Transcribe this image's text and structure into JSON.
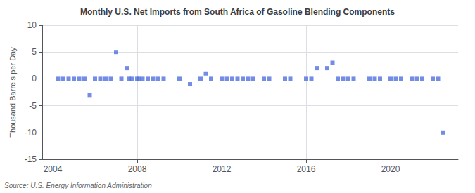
{
  "chart_data": {
    "type": "scatter",
    "title": "Monthly U.S. Net Imports from South Africa of Gasoline Blending Components",
    "ylabel": "Thousand Barrels per Day",
    "source": "Source: U.S. Energy Information Administration",
    "marker": "square",
    "x": [
      2004.25,
      2004.5,
      2004.75,
      2005.0,
      2005.25,
      2005.5,
      2005.75,
      2006.0,
      2006.25,
      2006.5,
      2006.75,
      2007.0,
      2007.25,
      2007.5,
      2007.6,
      2007.75,
      2008.0,
      2008.1,
      2008.25,
      2008.5,
      2008.75,
      2009.0,
      2009.25,
      2010.0,
      2010.5,
      2011.0,
      2011.25,
      2011.5,
      2012.0,
      2012.25,
      2012.5,
      2012.75,
      2013.0,
      2013.25,
      2013.5,
      2014.0,
      2014.25,
      2015.0,
      2015.25,
      2016.0,
      2016.25,
      2016.5,
      2017.0,
      2017.25,
      2017.5,
      2017.75,
      2018.0,
      2018.25,
      2019.0,
      2019.25,
      2019.5,
      2020.0,
      2020.25,
      2020.5,
      2021.0,
      2021.25,
      2021.5,
      2022.0,
      2022.25,
      2022.5
    ],
    "values": [
      0,
      0,
      0,
      0,
      0,
      0,
      -3,
      0,
      0,
      0,
      0,
      5,
      0,
      2,
      0,
      0,
      0,
      0,
      0,
      0,
      0,
      0,
      0,
      0,
      -1,
      0,
      1,
      0,
      0,
      0,
      0,
      0,
      0,
      0,
      0,
      0,
      0,
      0,
      0,
      0,
      0,
      2,
      2,
      3,
      0,
      0,
      0,
      0,
      0,
      0,
      0,
      0,
      0,
      0,
      0,
      0,
      0,
      0,
      0,
      -10
    ],
    "xlim": [
      2003.5,
      2023.2
    ],
    "xticks": [
      2004,
      2008,
      2012,
      2016,
      2020
    ],
    "ylim": [
      -15,
      10
    ],
    "yticks": [
      -15,
      -10,
      -5,
      0,
      5,
      10
    ],
    "grid": true
  }
}
